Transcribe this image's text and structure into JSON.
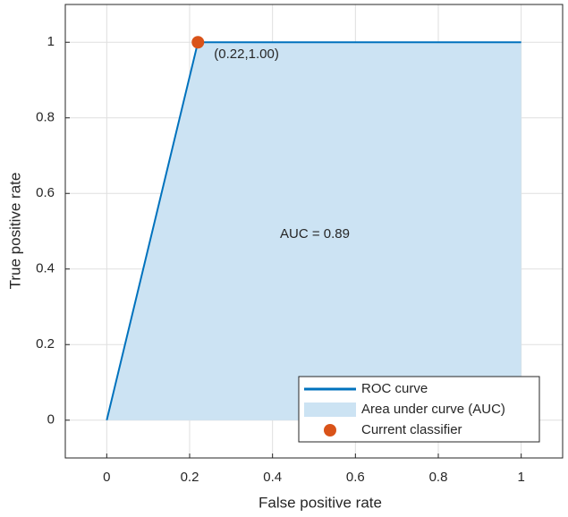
{
  "chart_data": {
    "type": "line",
    "xlabel": "False positive rate",
    "ylabel": "True positive rate",
    "xlim": [
      -0.1,
      1.1
    ],
    "ylim": [
      -0.1,
      1.1
    ],
    "xticks": [
      0,
      0.2,
      0.4,
      0.6,
      0.8,
      1
    ],
    "yticks": [
      0,
      0.2,
      0.4,
      0.6,
      0.8,
      1
    ],
    "grid": true,
    "legend": "lower right",
    "annotation": "AUC = 0.89",
    "series": [
      {
        "name": "ROC curve",
        "type": "line",
        "color": "#0072bd",
        "x": [
          0,
          0.22,
          1
        ],
        "values": [
          0,
          1,
          1
        ]
      },
      {
        "name": "Area under curve (AUC)",
        "type": "area",
        "color": "#cce3f3",
        "x": [
          0,
          0.22,
          1
        ],
        "values": [
          0,
          1,
          1
        ]
      },
      {
        "name": "Current classifier",
        "type": "scatter",
        "color": "#d95319",
        "x": [
          0.22
        ],
        "values": [
          1
        ],
        "value_labels": [
          "(0.22,1.00)"
        ]
      }
    ]
  }
}
